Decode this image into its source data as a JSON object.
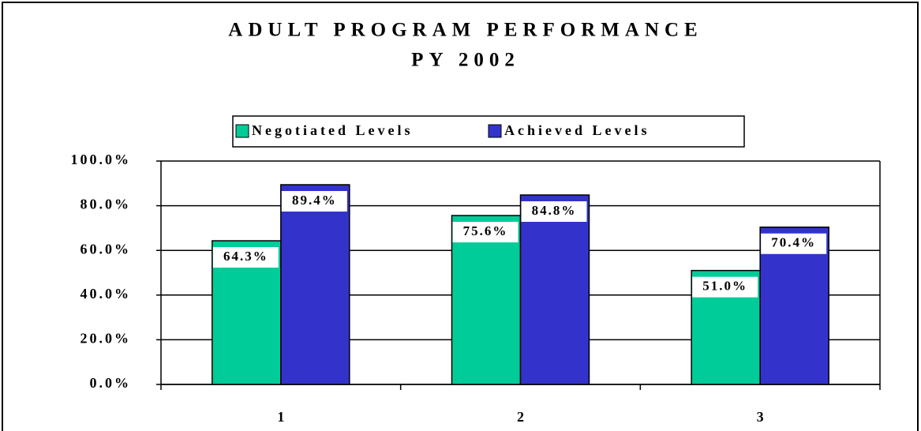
{
  "chart_data": {
    "type": "bar",
    "title": "ADULT PROGRAM PERFORMANCE",
    "subtitle": "PY 2002",
    "categories": [
      "1",
      "2",
      "3"
    ],
    "series": [
      {
        "name": "Negotiated Levels",
        "color": "#00cc99",
        "values": [
          64.3,
          75.6,
          51.0
        ],
        "value_labels": [
          "64.3%",
          "75.6%",
          "51.0%"
        ]
      },
      {
        "name": "Achieved Levels",
        "color": "#3333cc",
        "values": [
          89.4,
          84.8,
          70.4
        ],
        "value_labels": [
          "89.4%",
          "84.8%",
          "70.4%"
        ]
      }
    ],
    "ylim": [
      0,
      100
    ],
    "yticks": [
      {
        "value": 0,
        "label": "0.0%"
      },
      {
        "value": 20,
        "label": "20.0%"
      },
      {
        "value": 40,
        "label": "40.0%"
      },
      {
        "value": 60,
        "label": "60.0%"
      },
      {
        "value": 80,
        "label": "80.0%"
      },
      {
        "value": 100,
        "label": "100.0%"
      }
    ],
    "grid": true,
    "legend": "top"
  }
}
